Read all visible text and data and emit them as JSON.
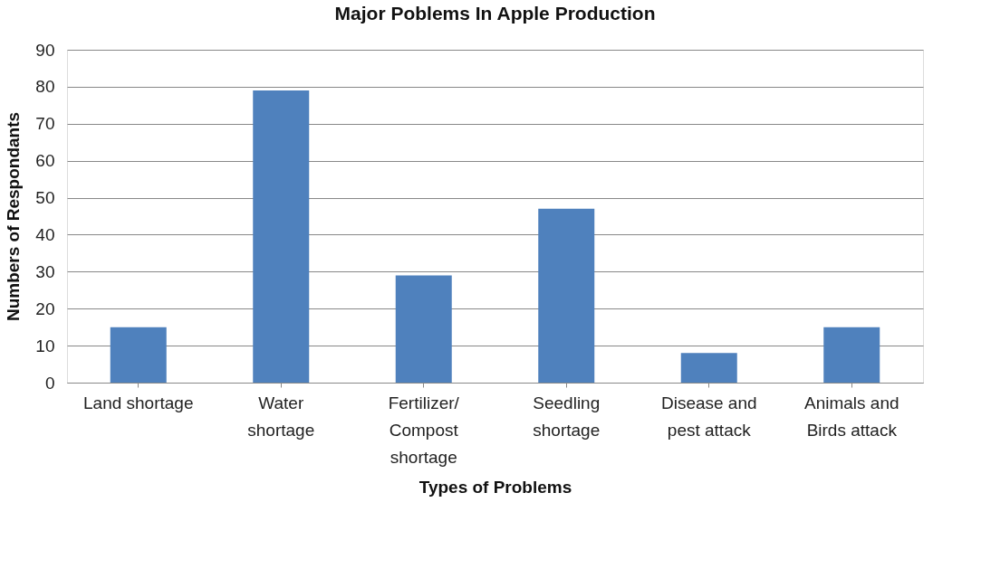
{
  "chart_data": {
    "type": "bar",
    "title": "Major Poblems In Apple Production",
    "xlabel": "Types of Problems",
    "ylabel": "Numbers of Respondants",
    "categories": [
      "Land shortage",
      "Water\nshortage",
      "Fertilizer/\nCompost\nshortage",
      "Seedling\nshortage",
      "Disease and\npest attack",
      "Animals and\nBirds attack"
    ],
    "values": [
      15,
      79,
      29,
      47,
      8,
      15
    ],
    "color": "#4f81bd",
    "ylim": [
      0,
      90
    ],
    "yticks": [
      0,
      10,
      20,
      30,
      40,
      50,
      60,
      70,
      80,
      90
    ],
    "grid": "y"
  }
}
